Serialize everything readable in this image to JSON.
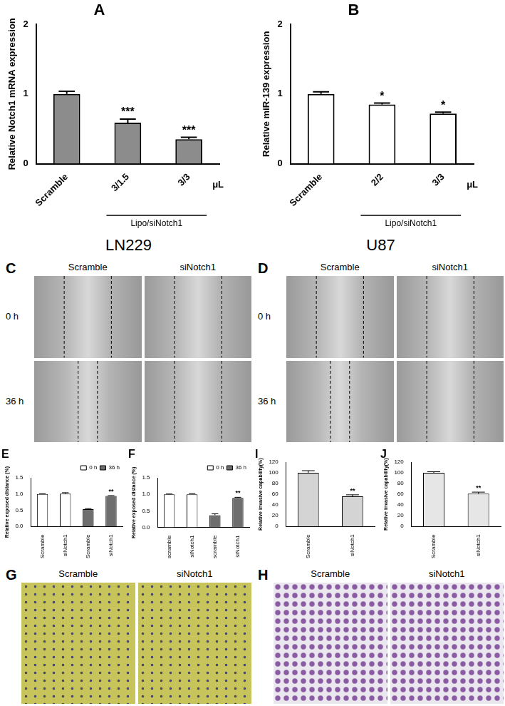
{
  "chart_data": [
    {
      "panel": "A",
      "type": "bar",
      "y_label": "Relative Notch1 mRNA expression",
      "categories": [
        "Scramble",
        "3/1.5",
        "3/3"
      ],
      "values": [
        1.0,
        0.59,
        0.35
      ],
      "errors": [
        0.04,
        0.05,
        0.03
      ],
      "significance": [
        null,
        "***",
        "***"
      ],
      "color": "#8c8c8c",
      "ylim": [
        0,
        2
      ],
      "yticks": [
        0,
        1,
        2
      ],
      "grid": false,
      "group_label": "Lipo/siNotch1",
      "unit_label": "μL"
    },
    {
      "panel": "B",
      "type": "bar",
      "y_label": "Relative miR-139 expression",
      "categories": [
        "Scramble",
        "2/2",
        "3/3"
      ],
      "values": [
        1.0,
        0.85,
        0.72
      ],
      "errors": [
        0.03,
        0.02,
        0.02
      ],
      "significance": [
        null,
        "*",
        "*"
      ],
      "color": "#ffffff",
      "ylim": [
        0,
        2
      ],
      "yticks": [
        0,
        1,
        2
      ],
      "grid": false,
      "group_label": "Lipo/siNotch1",
      "unit_label": "μL"
    },
    {
      "panel": "E",
      "type": "bar",
      "y_label": "Relative exposed distance (%)",
      "categories": [
        "Scramble",
        "siNotch1",
        "Scramble",
        "siNotch1"
      ],
      "series": [
        {
          "name": "0 h",
          "color": "#ffffff",
          "values": [
            1.0,
            1.01,
            null,
            null
          ],
          "errors": [
            0.01,
            0.03,
            null,
            null
          ],
          "significance": [
            null,
            null,
            null,
            null
          ]
        },
        {
          "name": "36 h",
          "color": "#6e6e6e",
          "values": [
            null,
            null,
            0.53,
            0.94
          ],
          "errors": [
            null,
            null,
            0.02,
            0.01
          ],
          "significance": [
            null,
            null,
            null,
            "**"
          ]
        }
      ],
      "ylim": [
        0,
        1.5
      ],
      "yticks": [
        {
          "value": 0,
          "label": "0.0"
        },
        {
          "value": 0.5,
          "label": "0.5"
        },
        {
          "value": 1,
          "label": "1.0"
        },
        {
          "value": 1.5,
          "label": "1.5"
        }
      ],
      "grid": false,
      "legend": "top-right"
    },
    {
      "panel": "F",
      "type": "bar",
      "y_label": "Relative exposed distance (%)",
      "categories": [
        "scramble",
        "siNotch1",
        "scramble",
        "siNotch1"
      ],
      "series": [
        {
          "name": "0 h",
          "color": "#ffffff",
          "values": [
            1.0,
            1.0,
            null,
            null
          ],
          "errors": [
            0.01,
            0.02,
            null,
            null
          ],
          "significance": [
            null,
            null,
            null,
            null
          ]
        },
        {
          "name": "36 h",
          "color": "#6e6e6e",
          "values": [
            null,
            null,
            0.37,
            0.89
          ],
          "errors": [
            null,
            null,
            0.04,
            0.02
          ],
          "significance": [
            null,
            null,
            null,
            "**"
          ]
        }
      ],
      "ylim": [
        0,
        1.5
      ],
      "yticks": [
        {
          "value": 0,
          "label": "0.0"
        },
        {
          "value": 0.5,
          "label": "0.5"
        },
        {
          "value": 1,
          "label": "1.0"
        },
        {
          "value": 1.5,
          "label": "1.5"
        }
      ],
      "grid": false,
      "legend": "top-right"
    },
    {
      "panel": "I",
      "type": "bar",
      "y_label": "Relative invasive capability(%)",
      "categories": [
        "Scramble",
        "siNotch1"
      ],
      "values": [
        100,
        56
      ],
      "errors": [
        4,
        3
      ],
      "significance": [
        null,
        "**"
      ],
      "color": "#d4d4d4",
      "ylim": [
        0,
        120
      ],
      "yticks": [
        0,
        20,
        40,
        60,
        80,
        100,
        120
      ],
      "grid": false
    },
    {
      "panel": "J",
      "type": "bar",
      "y_label": "Relative invasive capability(%)",
      "categories": [
        "Scramble",
        "siNotch1"
      ],
      "values": [
        100,
        61
      ],
      "errors": [
        2,
        3
      ],
      "significance": [
        null,
        "**"
      ],
      "color": "#e6e6e6",
      "ylim": [
        0,
        120
      ],
      "yticks": [
        0,
        20,
        40,
        60,
        80,
        100,
        120
      ],
      "grid": false
    }
  ],
  "images": [
    {
      "panel": "C",
      "cell_line": "LN229",
      "columns": [
        "Scramble",
        "siNotch1"
      ],
      "rows": [
        "0 h",
        "36 h"
      ]
    },
    {
      "panel": "D",
      "cell_line": "U87",
      "columns": [
        "Scramble",
        "siNotch1"
      ],
      "rows": [
        "0 h",
        "36 h"
      ]
    },
    {
      "panel": "G",
      "columns": [
        "Scramble",
        "siNotch1"
      ]
    },
    {
      "panel": "H",
      "columns": [
        "Scramble",
        "siNotch1"
      ]
    }
  ]
}
